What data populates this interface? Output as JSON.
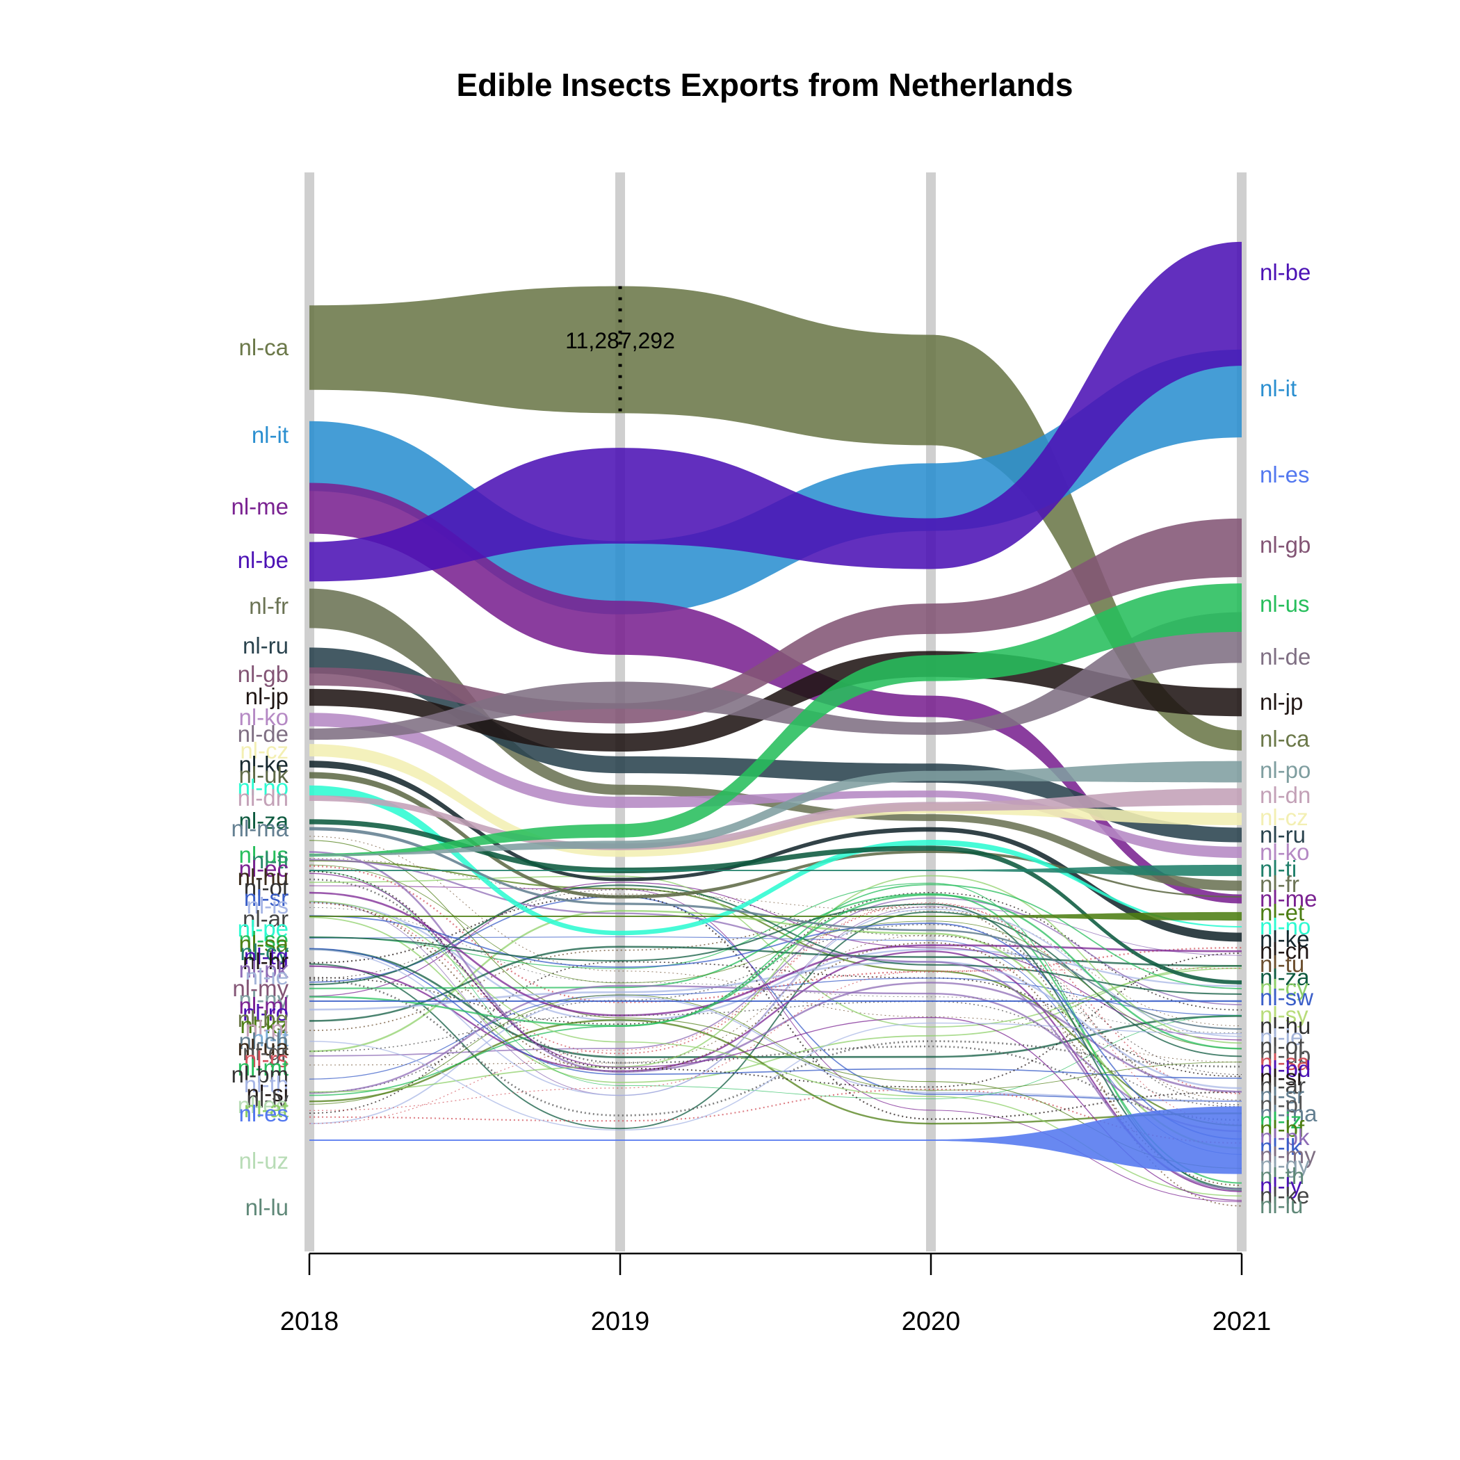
{
  "chart_data": {
    "type": "area",
    "title": "Edible Insects Exports from Netherlands",
    "xlabel": "",
    "ylabel": "",
    "x": [
      "2018",
      "2019",
      "2020",
      "2021"
    ],
    "annotation": {
      "x": "2019",
      "series": "nl-ca",
      "text": "11,287,292"
    },
    "series": [
      {
        "name": "nl-ca",
        "color": "#6b7849",
        "values": [
          7500000,
          11287292,
          9800000,
          1800000
        ]
      },
      {
        "name": "nl-it",
        "color": "#2b8fd0",
        "values": [
          6200000,
          6500000,
          6000000,
          7800000
        ]
      },
      {
        "name": "nl-me",
        "color": "#7a2291",
        "values": [
          4500000,
          4800000,
          1900000,
          800000
        ]
      },
      {
        "name": "nl-be",
        "color": "#4c12b5",
        "values": [
          3500000,
          8500000,
          4500000,
          11000000
        ]
      },
      {
        "name": "nl-fr",
        "color": "#6b7354",
        "values": [
          3500000,
          900000,
          600000,
          900000
        ]
      },
      {
        "name": "nl-ru",
        "color": "#2a434e",
        "values": [
          2300000,
          1500000,
          1700000,
          1300000
        ]
      },
      {
        "name": "nl-gb",
        "color": "#835575",
        "values": [
          1600000,
          1800000,
          2700000,
          5200000
        ]
      },
      {
        "name": "nl-jp",
        "color": "#201614",
        "values": [
          1500000,
          1600000,
          2300000,
          2500000
        ]
      },
      {
        "name": "nl-ko",
        "color": "#b589c4",
        "values": [
          1200000,
          1000000,
          600000,
          1000000
        ]
      },
      {
        "name": "nl-de",
        "color": "#7f6f83",
        "values": [
          1000000,
          2400000,
          1100000,
          4500000
        ]
      },
      {
        "name": "nl-cz",
        "color": "#f3efb3",
        "values": [
          1100000,
          800000,
          900000,
          1100000
        ]
      },
      {
        "name": "nl-ke",
        "color": "#16282e",
        "values": [
          600000,
          300000,
          400000,
          800000
        ]
      },
      {
        "name": "nl-uk",
        "color": "#5f6a47",
        "values": [
          550000,
          300000,
          250000,
          0
        ]
      },
      {
        "name": "nl-no",
        "color": "#2dfad1",
        "values": [
          900000,
          400000,
          500000,
          0
        ]
      },
      {
        "name": "nl-dn",
        "color": "#c3a1b7",
        "values": [
          500000,
          600000,
          800000,
          1500000
        ]
      },
      {
        "name": "nl-za",
        "color": "#0d5a3f",
        "values": [
          450000,
          500000,
          450000,
          350000
        ]
      },
      {
        "name": "nl-ma",
        "color": "#637f91",
        "values": [
          300000,
          200000,
          150000,
          0
        ]
      },
      {
        "name": "nl-us",
        "color": "#27be5c",
        "values": [
          250000,
          1200000,
          2300000,
          4300000
        ]
      },
      {
        "name": "nl-po",
        "color": "#7f9ea0",
        "values": [
          0,
          700000,
          900000,
          1900000
        ]
      },
      {
        "name": "nl-ti",
        "color": "#1f7f6a",
        "values": [
          0,
          0,
          0,
          1000000
        ]
      },
      {
        "name": "nl-et",
        "color": "#4d7e13",
        "values": [
          0,
          0,
          0,
          750000
        ]
      },
      {
        "name": "nl-es",
        "color": "#5378ef",
        "values": [
          0,
          0,
          0,
          6000000
        ]
      },
      {
        "name": "nl-sw",
        "color": "#3a5ec8",
        "values": [
          0,
          0,
          0,
          150000
        ]
      },
      {
        "name": "nl-uz",
        "color": "#b8dcb6",
        "values": [
          0,
          0,
          0,
          0
        ]
      },
      {
        "name": "nl-lu",
        "color": "#5f8878",
        "values": [
          0,
          0,
          0,
          0
        ]
      }
    ],
    "left_labels": [
      {
        "text": "nl-ca",
        "color": "#6b7849"
      },
      {
        "text": "nl-it",
        "color": "#2b8fd0"
      },
      {
        "text": "nl-me",
        "color": "#7a2291"
      },
      {
        "text": "nl-be",
        "color": "#4c12b5"
      },
      {
        "text": "nl-fr",
        "color": "#6b7354"
      },
      {
        "text": "nl-ru",
        "color": "#2a434e"
      },
      {
        "text": "nl-gb",
        "color": "#835575"
      },
      {
        "text": "nl-jp",
        "color": "#201614"
      },
      {
        "text": "nl-ko",
        "color": "#b589c4"
      },
      {
        "text": "nl-de",
        "color": "#7f6f83"
      },
      {
        "text": "nl-cz",
        "color": "#f3efb3"
      },
      {
        "text": "nl-ke",
        "color": "#16282e"
      },
      {
        "text": "nl-uk",
        "color": "#5f6a47"
      },
      {
        "text": "nl-no",
        "color": "#2dfad1"
      },
      {
        "text": "nl-dn",
        "color": "#c3a1b7"
      },
      {
        "text": "nl-za",
        "color": "#0d5a3f"
      },
      {
        "text": "nl-ma",
        "color": "#637f91"
      },
      {
        "text": "nl-us",
        "color": "#27be5c"
      },
      {
        "text": "nl-ti",
        "color": "#2a8a6a"
      },
      {
        "text": "nl-ec",
        "color": "#7a2291"
      },
      {
        "text": "nl-hu",
        "color": "#3b2b1b"
      },
      {
        "text": "nl-ot",
        "color": "#333333"
      },
      {
        "text": "nl-sr",
        "color": "#3a5ec8"
      },
      {
        "text": "nl-is",
        "color": "#a8b7e6"
      },
      {
        "text": "nl-ar",
        "color": "#444444"
      },
      {
        "text": "nl-pe",
        "color": "#2dfad1"
      },
      {
        "text": "nl-se",
        "color": "#27be5c"
      },
      {
        "text": "nl-sa",
        "color": "#4d7e13"
      },
      {
        "text": "nl-cy",
        "color": "#1f7f6a"
      },
      {
        "text": "nl-tg",
        "color": "#4c12b5"
      },
      {
        "text": "nl-hr",
        "color": "#201614"
      },
      {
        "text": "nl-pk",
        "color": "#8e6bb5"
      },
      {
        "text": "nl-ie",
        "color": "#a4b4d9"
      },
      {
        "text": "nl-my",
        "color": "#835575"
      },
      {
        "text": "nl-ny",
        "color": "#7f9ea0"
      },
      {
        "text": "nl-ml",
        "color": "#7a2291"
      },
      {
        "text": "nl-ro",
        "color": "#4c12b5"
      },
      {
        "text": "nl-bg",
        "color": "#6b7849"
      },
      {
        "text": "nl-kz",
        "color": "#4d7e13"
      },
      {
        "text": "nl-pl",
        "color": "#c3a1b7"
      },
      {
        "text": "nl-lt",
        "color": "#7fb0d9"
      },
      {
        "text": "nl-ch",
        "color": "#637f91"
      },
      {
        "text": "nl-ua",
        "color": "#3b2b1b"
      },
      {
        "text": "nl-gr",
        "color": "#555555"
      },
      {
        "text": "nl-rs",
        "color": "#d2515b"
      },
      {
        "text": "nl-mt",
        "color": "#27be5c"
      },
      {
        "text": "nl-bm",
        "color": "#333333"
      },
      {
        "text": "nl-th",
        "color": "#a8b7e6"
      },
      {
        "text": "nl-si",
        "color": "#201614"
      },
      {
        "text": "nl-lv",
        "color": "#444444"
      },
      {
        "text": "nl-ee",
        "color": "#b8dcb6"
      },
      {
        "text": "nl-at",
        "color": "#8fd06a"
      },
      {
        "text": "nl-es",
        "color": "#5378ef"
      },
      {
        "text": "nl-uz",
        "color": "#b8dcb6"
      },
      {
        "text": "nl-lu",
        "color": "#5f8878"
      }
    ],
    "right_labels": [
      {
        "text": "nl-be",
        "color": "#4c12b5"
      },
      {
        "text": "nl-it",
        "color": "#2b8fd0"
      },
      {
        "text": "nl-es",
        "color": "#5378ef"
      },
      {
        "text": "nl-gb",
        "color": "#835575"
      },
      {
        "text": "nl-us",
        "color": "#27be5c"
      },
      {
        "text": "nl-de",
        "color": "#7f6f83"
      },
      {
        "text": "nl-jp",
        "color": "#201614"
      },
      {
        "text": "nl-ca",
        "color": "#6b7849"
      },
      {
        "text": "nl-po",
        "color": "#7f9ea0"
      },
      {
        "text": "nl-dn",
        "color": "#c3a1b7"
      },
      {
        "text": "nl-cz",
        "color": "#f3efb3"
      },
      {
        "text": "nl-ru",
        "color": "#2a434e"
      },
      {
        "text": "nl-ko",
        "color": "#b589c4"
      },
      {
        "text": "nl-ti",
        "color": "#1f7f6a"
      },
      {
        "text": "nl-fr",
        "color": "#6b7354"
      },
      {
        "text": "nl-me",
        "color": "#7a2291"
      },
      {
        "text": "nl-et",
        "color": "#4d7e13"
      },
      {
        "text": "nl-no",
        "color": "#2dfad1"
      },
      {
        "text": "nl-ke",
        "color": "#16282e"
      },
      {
        "text": "nl-ch",
        "color": "#201614"
      },
      {
        "text": "nl-tu",
        "color": "#6b4e2e"
      },
      {
        "text": "nl-za",
        "color": "#0d5a3f"
      },
      {
        "text": "nl-cy",
        "color": "#8fd06a"
      },
      {
        "text": "nl-sw",
        "color": "#3a5ec8"
      },
      {
        "text": "nl-sy",
        "color": "#b8dc7a"
      },
      {
        "text": "nl-hu",
        "color": "#333333"
      },
      {
        "text": "nl-ie",
        "color": "#a4b4d9"
      },
      {
        "text": "nl-ot",
        "color": "#444444"
      },
      {
        "text": "nl-ub",
        "color": "#555555"
      },
      {
        "text": "nl-sa",
        "color": "#d2515b"
      },
      {
        "text": "nl-bd",
        "color": "#4c12b5"
      },
      {
        "text": "nl-si",
        "color": "#201614"
      },
      {
        "text": "nl-ar",
        "color": "#444444"
      },
      {
        "text": "nl-sr",
        "color": "#637f91"
      },
      {
        "text": "nl-pl",
        "color": "#555555"
      },
      {
        "text": "nl-ma",
        "color": "#637f91"
      },
      {
        "text": "nl-iz",
        "color": "#27be5c"
      },
      {
        "text": "nl-bf",
        "color": "#4d7e13"
      },
      {
        "text": "nl-pk",
        "color": "#8e6bb5"
      },
      {
        "text": "nl-lk",
        "color": "#3a5ec8"
      },
      {
        "text": "nl-my",
        "color": "#7f6f83"
      },
      {
        "text": "nl-gy",
        "color": "#8fa3b0"
      },
      {
        "text": "nl-th",
        "color": "#5f8878"
      },
      {
        "text": "nl-ly",
        "color": "#4c12b5"
      },
      {
        "text": "nl-ke",
        "color": "#444444"
      },
      {
        "text": "nl-lu",
        "color": "#5f8878"
      }
    ]
  }
}
